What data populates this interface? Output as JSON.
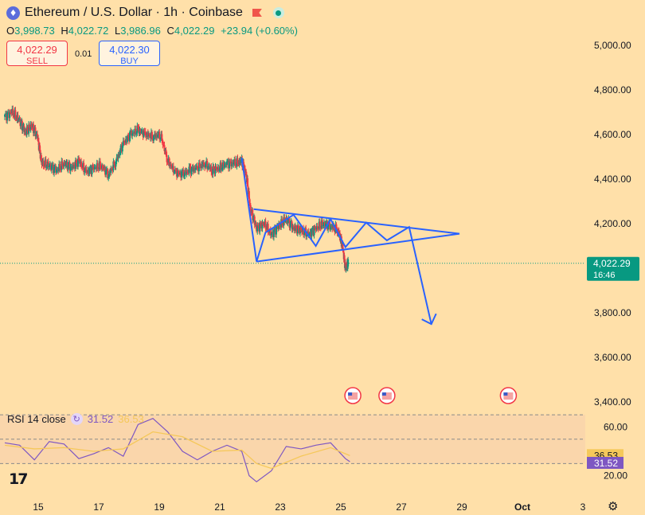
{
  "header": {
    "symbol_title": "Ethereum / U.S. Dollar · 1h · Coinbase",
    "eth_icon": "ethereum-icon",
    "flag_icon": "flag-icon",
    "status_icon": "market-open-dot-icon"
  },
  "ohlc": {
    "o_label": "O",
    "o": "3,998.73",
    "h_label": "H",
    "h": "4,022.72",
    "l_label": "L",
    "l": "3,986.96",
    "c_label": "C",
    "c": "4,022.29",
    "change": "+23.94 (+0.60%)"
  },
  "trade": {
    "sell_price": "4,022.29",
    "sell_label": "SELL",
    "spread": "0.01",
    "buy_price": "4,022.30",
    "buy_label": "BUY"
  },
  "rsi": {
    "label": "RSI 14 close",
    "value": "31.52",
    "ma_value": "36.53",
    "icon": "indicator-settings-icon"
  },
  "colors": {
    "background": "#ffe0a9",
    "up": "#089981",
    "down": "#f23645",
    "drawing": "#2962ff",
    "rsi": "#7e57c2",
    "rsi_ma": "#f5c85a"
  },
  "logo_text": "17",
  "settings_icon": "gear-icon",
  "chart_data": [
    {
      "type": "candlestick",
      "y_axis_labels": [
        "5,000.00",
        "4,800.00",
        "4,600.00",
        "4,400.00",
        "4,200.00",
        "3,800.00",
        "3,600.00",
        "3,400.00"
      ],
      "y_axis_values": [
        5000,
        4800,
        4600,
        4400,
        4200,
        3800,
        3600,
        3400
      ],
      "x_axis_labels": [
        "15",
        "17",
        "19",
        "21",
        "23",
        "25",
        "27",
        "29",
        "Oct",
        "3"
      ],
      "last_price": "4,022.29",
      "countdown": "16:46",
      "ylim": [
        3390,
        5060
      ],
      "close_series": [
        {
          "x": 0,
          "y": 4680
        },
        {
          "x": 0.5,
          "y": 4700
        },
        {
          "x": 1.0,
          "y": 4660
        },
        {
          "x": 1.4,
          "y": 4610
        },
        {
          "x": 1.8,
          "y": 4640
        },
        {
          "x": 2.2,
          "y": 4590
        },
        {
          "x": 2.5,
          "y": 4470
        },
        {
          "x": 3.0,
          "y": 4460
        },
        {
          "x": 3.5,
          "y": 4440
        },
        {
          "x": 4.0,
          "y": 4470
        },
        {
          "x": 4.5,
          "y": 4450
        },
        {
          "x": 5.0,
          "y": 4480
        },
        {
          "x": 5.5,
          "y": 4430
        },
        {
          "x": 6.0,
          "y": 4450
        },
        {
          "x": 6.5,
          "y": 4460
        },
        {
          "x": 7.0,
          "y": 4420
        },
        {
          "x": 7.5,
          "y": 4480
        },
        {
          "x": 8.0,
          "y": 4560
        },
        {
          "x": 8.5,
          "y": 4600
        },
        {
          "x": 9.0,
          "y": 4620
        },
        {
          "x": 9.5,
          "y": 4600
        },
        {
          "x": 10.0,
          "y": 4590
        },
        {
          "x": 10.5,
          "y": 4600
        },
        {
          "x": 11.0,
          "y": 4480
        },
        {
          "x": 11.5,
          "y": 4430
        },
        {
          "x": 12.0,
          "y": 4420
        },
        {
          "x": 12.5,
          "y": 4440
        },
        {
          "x": 13.0,
          "y": 4450
        },
        {
          "x": 13.5,
          "y": 4470
        },
        {
          "x": 14.0,
          "y": 4440
        },
        {
          "x": 14.5,
          "y": 4450
        },
        {
          "x": 15.0,
          "y": 4470
        },
        {
          "x": 15.5,
          "y": 4470
        },
        {
          "x": 16.0,
          "y": 4480
        },
        {
          "x": 16.3,
          "y": 4420
        },
        {
          "x": 16.6,
          "y": 4260
        },
        {
          "x": 17.0,
          "y": 4180
        },
        {
          "x": 17.5,
          "y": 4200
        },
        {
          "x": 18.0,
          "y": 4150
        },
        {
          "x": 18.5,
          "y": 4190
        },
        {
          "x": 19.0,
          "y": 4220
        },
        {
          "x": 19.5,
          "y": 4180
        },
        {
          "x": 20.0,
          "y": 4170
        },
        {
          "x": 20.5,
          "y": 4150
        },
        {
          "x": 21.0,
          "y": 4180
        },
        {
          "x": 21.5,
          "y": 4200
        },
        {
          "x": 22.0,
          "y": 4190
        },
        {
          "x": 22.5,
          "y": 4170
        },
        {
          "x": 22.8,
          "y": 4100
        },
        {
          "x": 23.0,
          "y": 4000
        },
        {
          "x": 23.2,
          "y": 4022
        }
      ],
      "pattern_points": [
        {
          "x": 16.0,
          "y": 4495
        },
        {
          "x": 17.0,
          "y": 4030
        },
        {
          "x": 17.6,
          "y": 4160
        },
        {
          "x": 19.5,
          "y": 4240
        },
        {
          "x": 21.0,
          "y": 4100
        },
        {
          "x": 22.0,
          "y": 4220
        },
        {
          "x": 23.0,
          "y": 4095
        },
        {
          "x": 24.4,
          "y": 4205
        },
        {
          "x": 25.8,
          "y": 4125
        },
        {
          "x": 27.3,
          "y": 4185
        },
        {
          "x": 28.8,
          "y": 3750
        }
      ],
      "triangle_upper": [
        {
          "x": 16.8,
          "y": 4265
        },
        {
          "x": 30.7,
          "y": 4155
        }
      ],
      "triangle_lower": [
        {
          "x": 17.0,
          "y": 4030
        },
        {
          "x": 30.7,
          "y": 4155
        }
      ],
      "events": [
        {
          "x": 23.5,
          "icon": "us-flag-event-icon"
        },
        {
          "x": 25.8,
          "icon": "us-flag-event-icon"
        },
        {
          "x": 34.0,
          "icon": "us-flag-event-icon"
        }
      ]
    },
    {
      "type": "line",
      "y_axis_labels": [
        "60.00",
        "20.00"
      ],
      "y_axis_values": [
        60,
        20
      ],
      "levels": [
        70,
        50,
        30
      ],
      "ylim": [
        8,
        72
      ],
      "series": [
        {
          "values": [
            {
              "x": 0,
              "y": 47
            },
            {
              "x": 1,
              "y": 45
            },
            {
              "x": 2,
              "y": 33
            },
            {
              "x": 3,
              "y": 48
            },
            {
              "x": 4,
              "y": 46
            },
            {
              "x": 5,
              "y": 34
            },
            {
              "x": 6,
              "y": 38
            },
            {
              "x": 7,
              "y": 43
            },
            {
              "x": 8,
              "y": 36
            },
            {
              "x": 9,
              "y": 62
            },
            {
              "x": 10,
              "y": 67
            },
            {
              "x": 11,
              "y": 56
            },
            {
              "x": 12,
              "y": 40
            },
            {
              "x": 13,
              "y": 33
            },
            {
              "x": 14,
              "y": 40
            },
            {
              "x": 15,
              "y": 45
            },
            {
              "x": 16,
              "y": 40
            },
            {
              "x": 16.5,
              "y": 20
            },
            {
              "x": 17,
              "y": 15
            },
            {
              "x": 18,
              "y": 24
            },
            {
              "x": 19,
              "y": 44
            },
            {
              "x": 20,
              "y": 42
            },
            {
              "x": 21,
              "y": 45
            },
            {
              "x": 22,
              "y": 47
            },
            {
              "x": 23,
              "y": 34
            },
            {
              "x": 23.3,
              "y": 31.5
            }
          ]
        },
        {
          "values": [
            {
              "x": 0,
              "y": 45
            },
            {
              "x": 2,
              "y": 42
            },
            {
              "x": 4,
              "y": 43
            },
            {
              "x": 6,
              "y": 40
            },
            {
              "x": 8,
              "y": 42
            },
            {
              "x": 10,
              "y": 56
            },
            {
              "x": 12,
              "y": 52
            },
            {
              "x": 14,
              "y": 40
            },
            {
              "x": 16,
              "y": 41
            },
            {
              "x": 17,
              "y": 30
            },
            {
              "x": 18,
              "y": 26
            },
            {
              "x": 20,
              "y": 36
            },
            {
              "x": 22,
              "y": 43
            },
            {
              "x": 23.3,
              "y": 36.5
            }
          ]
        }
      ]
    }
  ]
}
